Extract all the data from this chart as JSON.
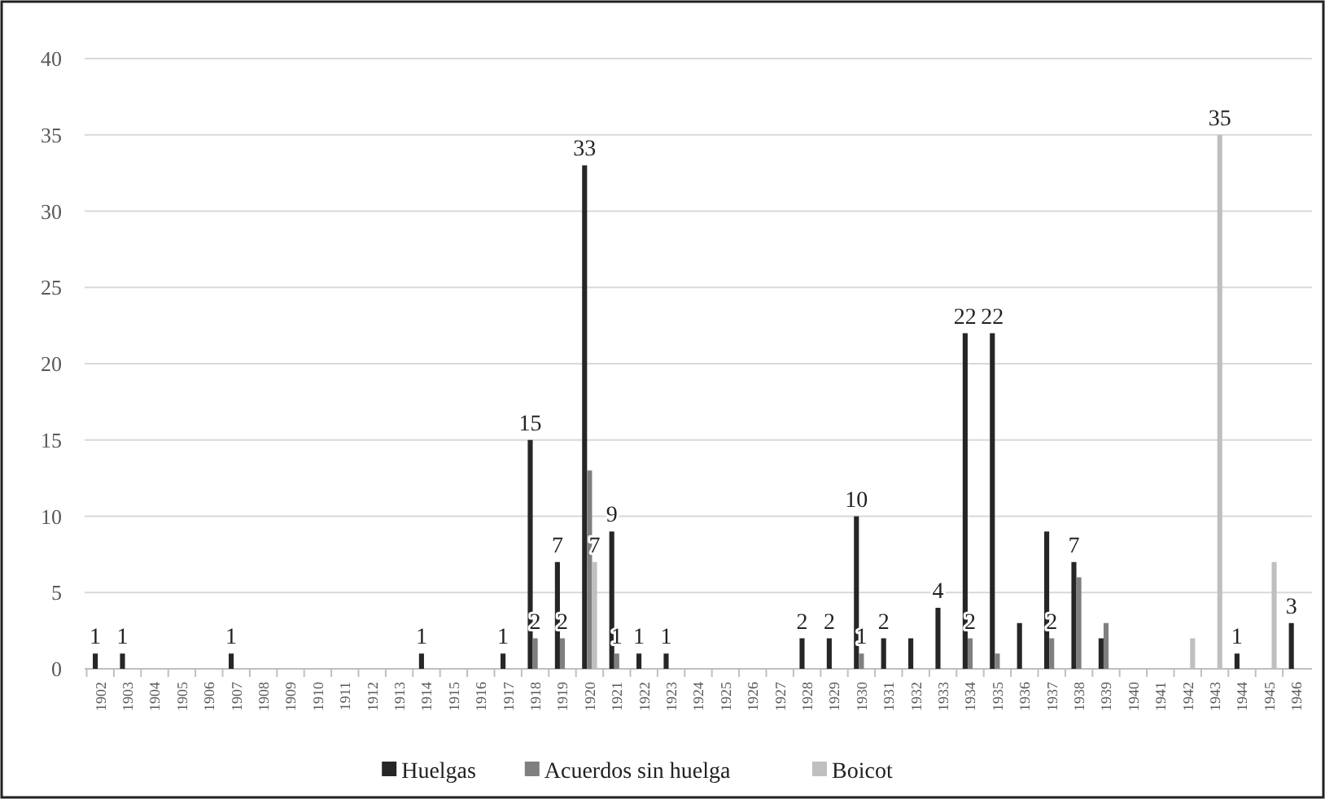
{
  "chart_data": {
    "type": "bar",
    "categories": [
      "1902",
      "1903",
      "1904",
      "1905",
      "1906",
      "1907",
      "1908",
      "1909",
      "1910",
      "1911",
      "1912",
      "1913",
      "1914",
      "1915",
      "1916",
      "1917",
      "1918",
      "1919",
      "1920",
      "1921",
      "1922",
      "1923",
      "1924",
      "1925",
      "1926",
      "1927",
      "1928",
      "1929",
      "1930",
      "1931",
      "1932",
      "1933",
      "1934",
      "1935",
      "1936",
      "1937",
      "1938",
      "1939",
      "1940",
      "1941",
      "1942",
      "1943",
      "1944",
      "1945",
      "1946"
    ],
    "series": [
      {
        "name": "Huelgas",
        "color": "#262626",
        "values": [
          1,
          1,
          0,
          0,
          0,
          1,
          0,
          0,
          0,
          0,
          0,
          0,
          1,
          0,
          0,
          1,
          15,
          7,
          33,
          9,
          1,
          1,
          0,
          0,
          0,
          0,
          2,
          2,
          10,
          2,
          2,
          4,
          22,
          22,
          3,
          9,
          7,
          2,
          0,
          0,
          0,
          0,
          1,
          0,
          3
        ],
        "value_labels": [
          "1",
          "1",
          null,
          null,
          null,
          "1",
          null,
          null,
          null,
          null,
          null,
          null,
          "1",
          null,
          null,
          "1",
          "15",
          "7",
          "33",
          "9",
          "1",
          "1",
          null,
          null,
          null,
          null,
          "2",
          "2",
          "10",
          "2",
          null,
          "4",
          "22",
          "22",
          null,
          null,
          "7",
          null,
          null,
          null,
          null,
          null,
          "1",
          null,
          "3"
        ]
      },
      {
        "name": "Acuerdos sin huelga",
        "color": "#7f7f7f",
        "values": [
          0,
          0,
          0,
          0,
          0,
          0,
          0,
          0,
          0,
          0,
          0,
          0,
          0,
          0,
          0,
          0,
          2,
          2,
          13,
          1,
          0,
          0,
          0,
          0,
          0,
          0,
          0,
          0,
          1,
          0,
          0,
          0,
          2,
          1,
          0,
          2,
          6,
          3,
          0,
          0,
          0,
          0,
          0,
          0,
          0
        ],
        "value_labels": [
          null,
          null,
          null,
          null,
          null,
          null,
          null,
          null,
          null,
          null,
          null,
          null,
          null,
          null,
          null,
          null,
          "2",
          "2",
          null,
          "1",
          null,
          null,
          null,
          null,
          null,
          null,
          null,
          null,
          "1",
          null,
          null,
          null,
          "2",
          null,
          null,
          "2",
          null,
          null,
          null,
          null,
          null,
          null,
          null,
          null,
          null
        ]
      },
      {
        "name": "Boicot",
        "color": "#bfbfbf",
        "values": [
          0,
          0,
          0,
          0,
          0,
          0,
          0,
          0,
          0,
          0,
          0,
          0,
          0,
          0,
          0,
          0,
          0,
          0,
          7,
          0,
          0,
          0,
          0,
          0,
          0,
          0,
          0,
          0,
          0,
          0,
          0,
          0,
          0,
          0,
          0,
          0,
          0,
          0,
          0,
          0,
          2,
          35,
          0,
          7,
          0
        ],
        "value_labels": [
          null,
          null,
          null,
          null,
          null,
          null,
          null,
          null,
          null,
          null,
          null,
          null,
          null,
          null,
          null,
          null,
          null,
          null,
          "7",
          null,
          null,
          null,
          null,
          null,
          null,
          null,
          null,
          null,
          null,
          null,
          null,
          null,
          null,
          null,
          null,
          null,
          null,
          null,
          null,
          null,
          null,
          "35",
          null,
          null,
          null
        ]
      }
    ],
    "ylim": [
      0,
      40
    ],
    "yticks": [
      0,
      5,
      10,
      15,
      20,
      25,
      30,
      35,
      40
    ],
    "grid": "y",
    "legend": "bottom"
  }
}
